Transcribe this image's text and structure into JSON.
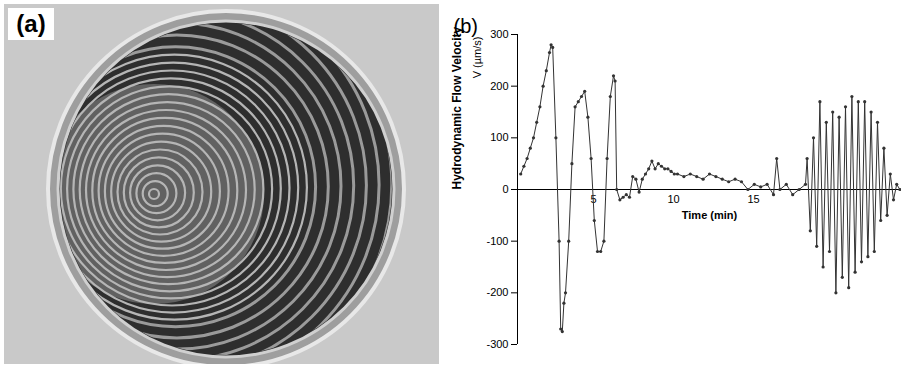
{
  "image_panel": {
    "label": "(a)"
  },
  "chart_data": {
    "type": "line",
    "panel_label": "(b)",
    "ylabel": "Hydrodynamic Flow Velocity",
    "y_unit_label": "V (µm/s)",
    "xlabel": "Time (min)",
    "color": "#333333",
    "marker": "dot",
    "xlim": [
      0,
      24
    ],
    "xticks": [
      5,
      10,
      15
    ],
    "ylim": [
      -300,
      300
    ],
    "yticks": [
      -300,
      -200,
      -100,
      0,
      100,
      200,
      300
    ],
    "x": [
      0.2,
      0.4,
      0.6,
      0.8,
      1.0,
      1.2,
      1.4,
      1.6,
      1.8,
      2.0,
      2.1,
      2.2,
      2.4,
      2.6,
      2.7,
      2.8,
      2.9,
      3.0,
      3.2,
      3.4,
      3.6,
      3.8,
      4.0,
      4.2,
      4.4,
      4.6,
      4.8,
      5.0,
      5.2,
      5.4,
      5.6,
      5.8,
      6.0,
      6.1,
      6.2,
      6.4,
      6.6,
      6.8,
      7.0,
      7.2,
      7.4,
      7.6,
      7.8,
      8.0,
      8.2,
      8.4,
      8.6,
      8.8,
      9.0,
      9.2,
      9.4,
      9.6,
      9.8,
      10.0,
      10.4,
      10.8,
      11.2,
      11.6,
      12.0,
      12.4,
      12.8,
      13.2,
      13.6,
      14.0,
      14.4,
      14.8,
      15.2,
      15.6,
      16.0,
      16.2,
      16.4,
      16.8,
      17.2,
      17.6,
      18.0,
      18.1,
      18.3,
      18.5,
      18.7,
      18.9,
      19.1,
      19.3,
      19.5,
      19.7,
      19.9,
      20.1,
      20.3,
      20.5,
      20.7,
      20.9,
      21.1,
      21.3,
      21.5,
      21.7,
      21.9,
      22.1,
      22.3,
      22.5,
      22.7,
      22.9,
      23.1,
      23.3,
      23.5,
      23.7,
      23.9
    ],
    "values": [
      30,
      45,
      60,
      80,
      100,
      130,
      160,
      200,
      230,
      265,
      280,
      275,
      100,
      -100,
      -270,
      -275,
      -220,
      -200,
      -100,
      50,
      160,
      170,
      180,
      190,
      140,
      60,
      -60,
      -120,
      -120,
      -100,
      60,
      180,
      220,
      210,
      0,
      -20,
      -15,
      -10,
      -15,
      25,
      20,
      -5,
      20,
      30,
      40,
      55,
      40,
      50,
      45,
      40,
      40,
      35,
      30,
      30,
      25,
      30,
      25,
      20,
      30,
      25,
      20,
      15,
      20,
      15,
      0,
      10,
      5,
      10,
      -10,
      60,
      0,
      10,
      -10,
      0,
      10,
      60,
      -80,
      100,
      -110,
      170,
      -150,
      130,
      -120,
      150,
      -200,
      140,
      -170,
      160,
      -190,
      180,
      -160,
      170,
      -140,
      170,
      -130,
      150,
      -120,
      130,
      -60,
      80,
      -50,
      30,
      -20,
      10,
      0
    ]
  }
}
